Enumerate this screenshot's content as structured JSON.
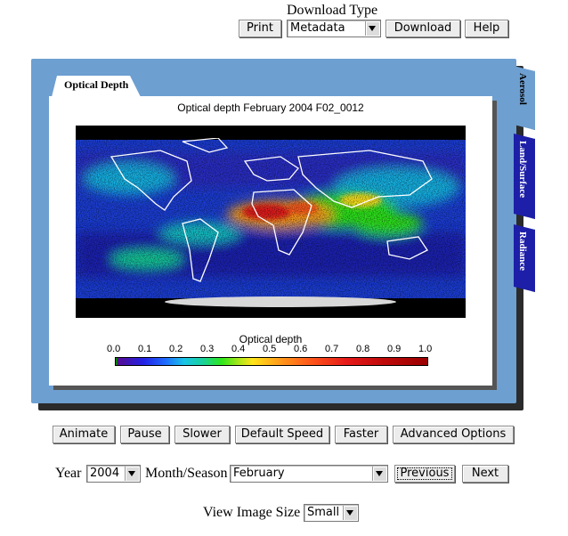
{
  "header": {
    "download_type_label": "Download Type",
    "print_label": "Print",
    "download_type_value": "Metadata",
    "download_label": "Download",
    "help_label": "Help"
  },
  "tabs": {
    "active_tab": "Optical Depth",
    "side_tabs": [
      "Aerosol",
      "Land/Surface",
      "Radiance"
    ]
  },
  "map": {
    "title": "Optical depth February 2004 F02_0012",
    "colorbar_title": "Optical depth",
    "colorbar_ticks": [
      "0.0",
      "0.1",
      "0.2",
      "0.3",
      "0.4",
      "0.5",
      "0.6",
      "0.7",
      "0.8",
      "0.9",
      "1.0"
    ]
  },
  "controls": {
    "animate_label": "Animate",
    "pause_label": "Pause",
    "slower_label": "Slower",
    "default_speed_label": "Default Speed",
    "faster_label": "Faster",
    "advanced_options_label": "Advanced Options"
  },
  "date": {
    "year_label": "Year",
    "year_value": "2004",
    "month_label": "Month/Season",
    "month_value": "February",
    "previous_label": "Previous",
    "next_label": "Next"
  },
  "view": {
    "size_label": "View Image Size",
    "size_value": "Small"
  },
  "colors": {
    "panel": "#6d9fd1",
    "side_tab": "#1d1fa8"
  }
}
